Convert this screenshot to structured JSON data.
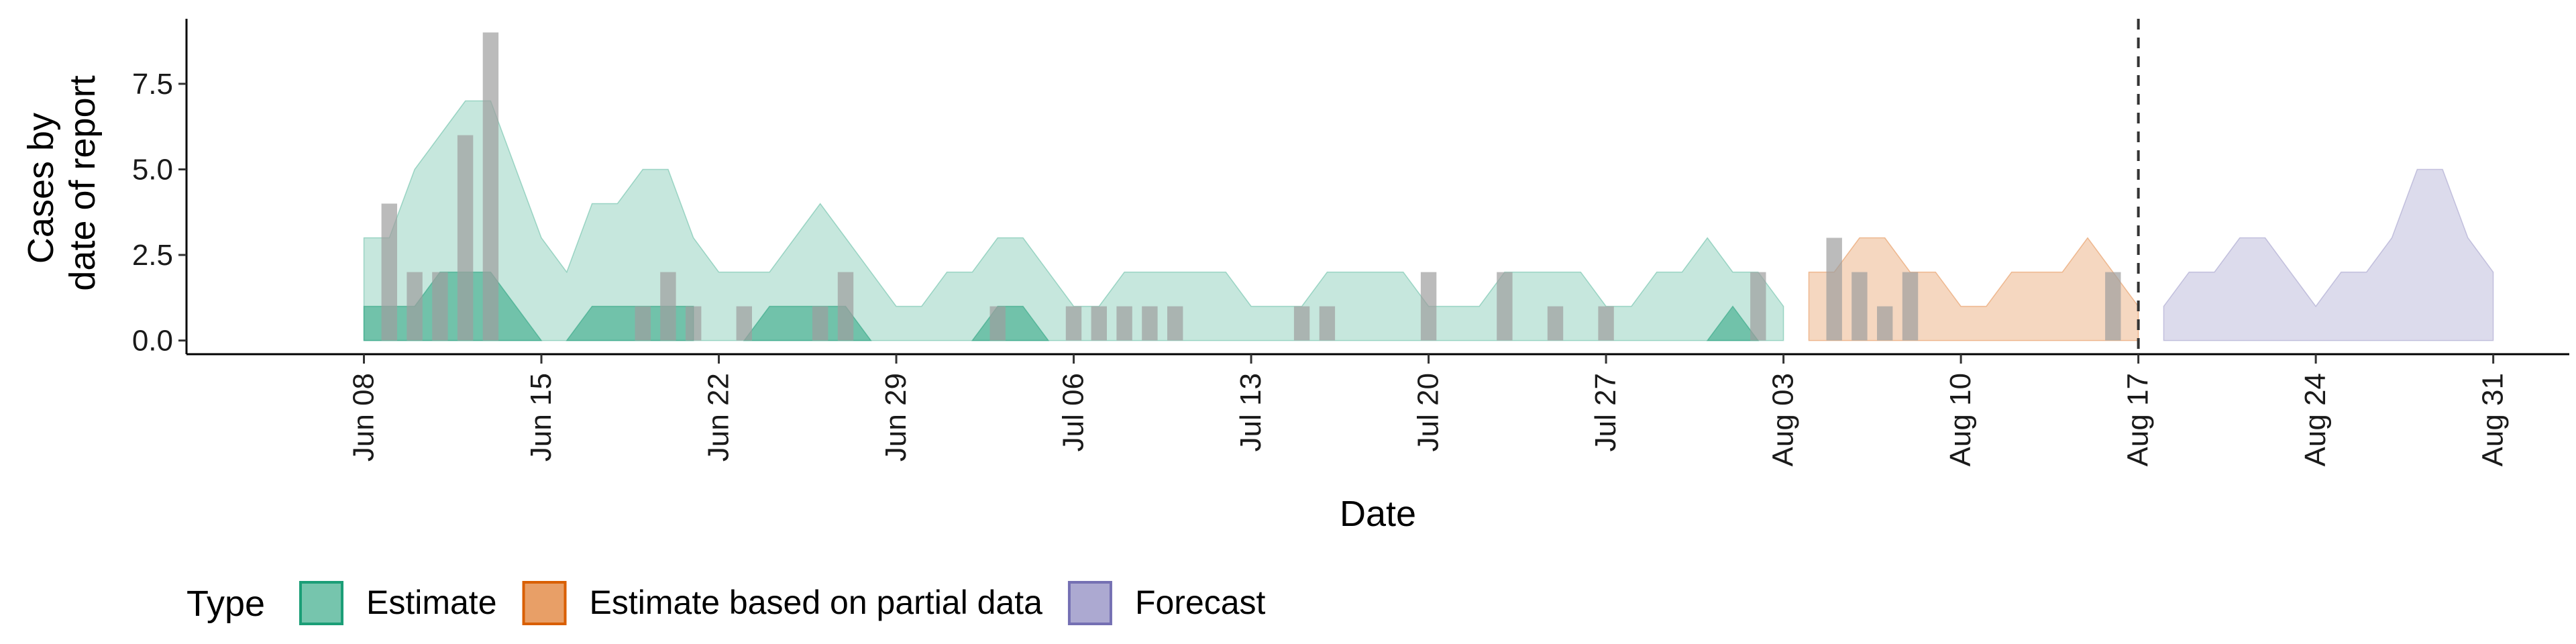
{
  "chart_data": {
    "type": "area",
    "xlabel": "Date",
    "ylabel_lines": [
      "Cases by",
      "date of report"
    ],
    "x_range": [
      "2020-06-01",
      "2020-09-03"
    ],
    "ylim": [
      -0.4,
      9.4
    ],
    "y_ticks": [
      {
        "value": 0.0,
        "label": "0.0"
      },
      {
        "value": 2.5,
        "label": "2.5"
      },
      {
        "value": 5.0,
        "label": "5.0"
      },
      {
        "value": 7.5,
        "label": "7.5"
      }
    ],
    "x_ticks": [
      {
        "date": "2020-06-08",
        "label": "Jun 08"
      },
      {
        "date": "2020-06-15",
        "label": "Jun 15"
      },
      {
        "date": "2020-06-22",
        "label": "Jun 22"
      },
      {
        "date": "2020-06-29",
        "label": "Jun 29"
      },
      {
        "date": "2020-07-06",
        "label": "Jul 06"
      },
      {
        "date": "2020-07-13",
        "label": "Jul 13"
      },
      {
        "date": "2020-07-20",
        "label": "Jul 20"
      },
      {
        "date": "2020-07-27",
        "label": "Jul 27"
      },
      {
        "date": "2020-08-03",
        "label": "Aug 03"
      },
      {
        "date": "2020-08-10",
        "label": "Aug 10"
      },
      {
        "date": "2020-08-17",
        "label": "Aug 17"
      },
      {
        "date": "2020-08-24",
        "label": "Aug 24"
      },
      {
        "date": "2020-08-31",
        "label": "Aug 31"
      }
    ],
    "grid": false,
    "legend_placement": "bottom-left",
    "legend_title": "Type",
    "vline_date": "2020-08-17",
    "series": [
      {
        "name": "Estimate",
        "color": "#1b9e77",
        "outer": {
          "dates": [
            "2020-06-08",
            "2020-06-09",
            "2020-06-10",
            "2020-06-11",
            "2020-06-12",
            "2020-06-13",
            "2020-06-14",
            "2020-06-15",
            "2020-06-16",
            "2020-06-17",
            "2020-06-18",
            "2020-06-19",
            "2020-06-20",
            "2020-06-21",
            "2020-06-22",
            "2020-06-23",
            "2020-06-24",
            "2020-06-25",
            "2020-06-26",
            "2020-06-27",
            "2020-06-28",
            "2020-06-29",
            "2020-06-30",
            "2020-07-01",
            "2020-07-02",
            "2020-07-03",
            "2020-07-04",
            "2020-07-05",
            "2020-07-06",
            "2020-07-07",
            "2020-07-08",
            "2020-07-09",
            "2020-07-10",
            "2020-07-11",
            "2020-07-12",
            "2020-07-13",
            "2020-07-14",
            "2020-07-15",
            "2020-07-16",
            "2020-07-17",
            "2020-07-18",
            "2020-07-19",
            "2020-07-20",
            "2020-07-21",
            "2020-07-22",
            "2020-07-23",
            "2020-07-24",
            "2020-07-25",
            "2020-07-26",
            "2020-07-27",
            "2020-07-28",
            "2020-07-29",
            "2020-07-30",
            "2020-07-31",
            "2020-08-01",
            "2020-08-02",
            "2020-08-03"
          ],
          "upper": [
            3,
            3,
            5,
            6,
            7,
            7,
            5,
            3,
            2,
            4,
            4,
            5,
            5,
            3,
            2,
            2,
            2,
            3,
            4,
            3,
            2,
            1,
            1,
            2,
            2,
            3,
            3,
            2,
            1,
            1,
            2,
            2,
            2,
            2,
            2,
            1,
            1,
            1,
            2,
            2,
            2,
            2,
            1,
            1,
            1,
            2,
            2,
            2,
            2,
            1,
            1,
            2,
            2,
            3,
            2,
            2,
            1
          ],
          "lower": [
            0,
            0,
            0,
            0,
            0,
            0,
            0,
            0,
            0,
            0,
            0,
            0,
            0,
            0,
            0,
            0,
            0,
            0,
            0,
            0,
            0,
            0,
            0,
            0,
            0,
            0,
            0,
            0,
            0,
            0,
            0,
            0,
            0,
            0,
            0,
            0,
            0,
            0,
            0,
            0,
            0,
            0,
            0,
            0,
            0,
            0,
            0,
            0,
            0,
            0,
            0,
            0,
            0,
            0,
            0,
            0,
            0
          ]
        },
        "inner": [
          {
            "dates": [
              "2020-06-08",
              "2020-06-09",
              "2020-06-10",
              "2020-06-11",
              "2020-06-12",
              "2020-06-13",
              "2020-06-14",
              "2020-06-15"
            ],
            "upper": [
              1,
              1,
              1,
              2,
              2,
              2,
              1,
              0
            ],
            "lower": [
              0,
              0,
              0,
              0,
              0,
              0,
              0,
              0
            ]
          },
          {
            "dates": [
              "2020-06-16",
              "2020-06-17",
              "2020-06-18",
              "2020-06-19",
              "2020-06-20",
              "2020-06-21"
            ],
            "upper": [
              0,
              1,
              1,
              1,
              1,
              1
            ],
            "lower": [
              0,
              0,
              0,
              0,
              0,
              0
            ]
          },
          {
            "dates": [
              "2020-06-23",
              "2020-06-24",
              "2020-06-25",
              "2020-06-26",
              "2020-06-27",
              "2020-06-28"
            ],
            "upper": [
              0,
              1,
              1,
              1,
              1,
              0
            ],
            "lower": [
              0,
              0,
              0,
              0,
              0,
              0
            ]
          },
          {
            "dates": [
              "2020-07-02",
              "2020-07-03",
              "2020-07-04",
              "2020-07-05"
            ],
            "upper": [
              0,
              1,
              1,
              0
            ],
            "lower": [
              0,
              0,
              0,
              0
            ]
          },
          {
            "dates": [
              "2020-07-31",
              "2020-08-01",
              "2020-08-02"
            ],
            "upper": [
              0,
              1,
              0
            ],
            "lower": [
              0,
              0,
              0
            ]
          }
        ]
      },
      {
        "name": "Estimate based on partial data",
        "color": "#d95f02",
        "outer": {
          "dates": [
            "2020-08-04",
            "2020-08-05",
            "2020-08-06",
            "2020-08-07",
            "2020-08-08",
            "2020-08-09",
            "2020-08-10",
            "2020-08-11",
            "2020-08-12",
            "2020-08-13",
            "2020-08-14",
            "2020-08-15",
            "2020-08-16",
            "2020-08-17"
          ],
          "upper": [
            2,
            2,
            3,
            3,
            2,
            2,
            1,
            1,
            2,
            2,
            2,
            3,
            2,
            1
          ],
          "lower": [
            0,
            0,
            0,
            0,
            0,
            0,
            0,
            0,
            0,
            0,
            0,
            0,
            0,
            0
          ]
        },
        "inner": []
      },
      {
        "name": "Forecast",
        "color": "#7570b3",
        "outer": {
          "dates": [
            "2020-08-18",
            "2020-08-19",
            "2020-08-20",
            "2020-08-21",
            "2020-08-22",
            "2020-08-23",
            "2020-08-24",
            "2020-08-25",
            "2020-08-26",
            "2020-08-27",
            "2020-08-28",
            "2020-08-29",
            "2020-08-30",
            "2020-08-31"
          ],
          "upper": [
            1,
            2,
            2,
            3,
            3,
            2,
            1,
            2,
            2,
            3,
            5,
            5,
            3,
            2
          ],
          "lower": [
            0,
            0,
            0,
            0,
            0,
            0,
            0,
            0,
            0,
            0,
            0,
            0,
            0,
            0
          ]
        },
        "inner": []
      }
    ],
    "reported_cases": {
      "color": "#9e9e9e",
      "dates": [
        "2020-06-09",
        "2020-06-10",
        "2020-06-11",
        "2020-06-12",
        "2020-06-13",
        "2020-06-19",
        "2020-06-20",
        "2020-06-21",
        "2020-06-23",
        "2020-06-26",
        "2020-06-27",
        "2020-07-03",
        "2020-07-06",
        "2020-07-07",
        "2020-07-08",
        "2020-07-09",
        "2020-07-10",
        "2020-07-15",
        "2020-07-16",
        "2020-07-20",
        "2020-07-23",
        "2020-07-25",
        "2020-07-27",
        "2020-08-02",
        "2020-08-05",
        "2020-08-06",
        "2020-08-07",
        "2020-08-08",
        "2020-08-16"
      ],
      "values": [
        4,
        2,
        2,
        6,
        9,
        1,
        2,
        1,
        1,
        1,
        2,
        1,
        1,
        1,
        1,
        1,
        1,
        1,
        1,
        2,
        2,
        1,
        1,
        2,
        3,
        2,
        1,
        2,
        2
      ]
    }
  }
}
